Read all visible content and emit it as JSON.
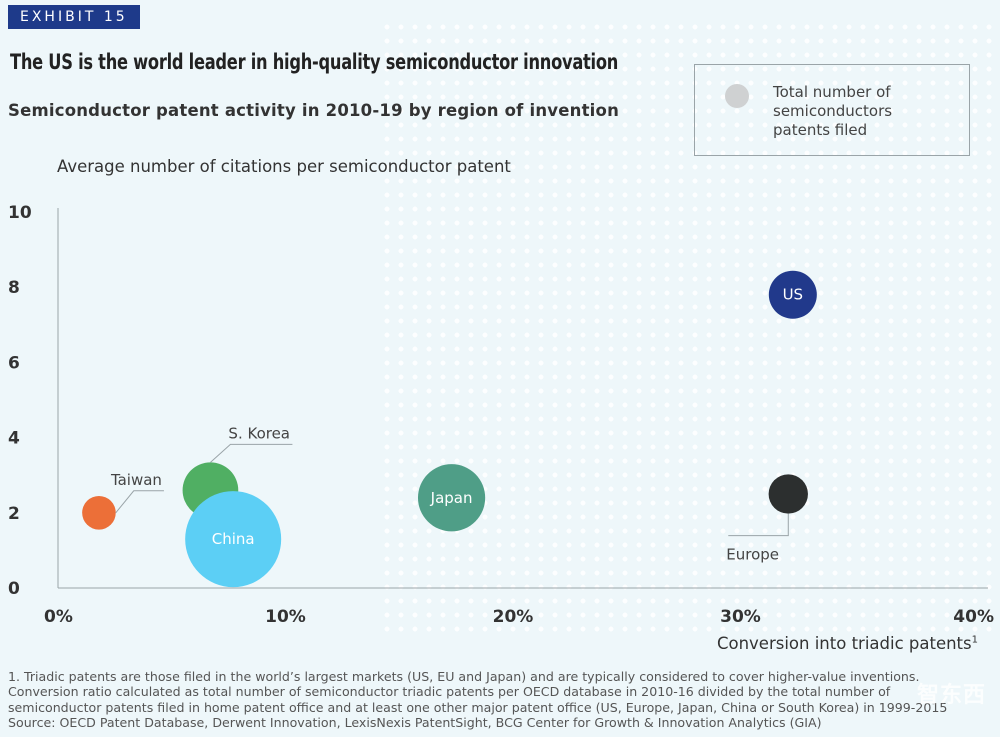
{
  "exhibit": "EXHIBIT 15",
  "headline": "The US is the world leader in high-quality semiconductor innovation",
  "subtitle": "Semiconductor patent activity in 2010-19 by region of invention",
  "legend": {
    "label": "Total number of semiconductors patents filed",
    "color": "#cfd1d2"
  },
  "chart_data": {
    "type": "scatter",
    "title": "Semiconductor patent activity in 2010-19 by region of invention",
    "ylabel": "Average number of citations per semiconductor patent",
    "xlabel": "Conversion into triadic patents",
    "xlabel_footnote": "1",
    "xlim": [
      0,
      40
    ],
    "ylim": [
      0,
      10
    ],
    "x_ticks": [
      0,
      10,
      20,
      30,
      40
    ],
    "x_tick_labels": [
      "0%",
      "10%",
      "20%",
      "30%",
      "40%"
    ],
    "y_ticks": [
      0,
      2,
      4,
      6,
      8,
      10
    ],
    "y_tick_labels": [
      "0",
      "2",
      "4",
      "6",
      "8",
      "10"
    ],
    "size_encoding": "Total number of semiconductors patents filed",
    "points": [
      {
        "name": "Taiwan",
        "x": 1.8,
        "y": 2.0,
        "relative_size": 0.35,
        "color": "#ec6f38",
        "label_position": "outside"
      },
      {
        "name": "S. Korea",
        "x": 6.7,
        "y": 2.6,
        "relative_size": 0.58,
        "color": "#50af63",
        "label_position": "outside"
      },
      {
        "name": "China",
        "x": 7.7,
        "y": 1.3,
        "relative_size": 1.0,
        "color": "#5ccff5",
        "label_position": "inside"
      },
      {
        "name": "Japan",
        "x": 17.3,
        "y": 2.4,
        "relative_size": 0.7,
        "color": "#4f9e87",
        "label_position": "inside"
      },
      {
        "name": "US",
        "x": 32.3,
        "y": 7.8,
        "relative_size": 0.5,
        "color": "#21398b",
        "label_position": "inside"
      },
      {
        "name": "Europe",
        "x": 32.1,
        "y": 2.5,
        "relative_size": 0.41,
        "color": "#2c2f2f",
        "label_position": "outside"
      }
    ]
  },
  "footnotes": [
    "1. Triadic patents are those filed in the world’s largest markets (US, EU and Japan) and are typically considered to cover higher-value inventions.",
    "Conversion ratio calculated as total number of semiconductor triadic patents per OECD database in 2010-16 divided by the total number of",
    "semiconductor patents filed in home patent office and at least one other major patent office (US, Europe, Japan, China or South Korea) in 1999-2015",
    "Source: OECD Patent Database, Derwent Innovation, LexisNexis PatentSight,  BCG Center for Growth & Innovation Analytics (GIA)"
  ],
  "watermark": "智东西"
}
